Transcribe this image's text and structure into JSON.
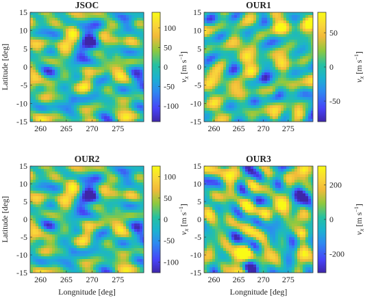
{
  "figure": {
    "xlabel": "Longnitude [deg]",
    "ylabel": "Latitude [deg]",
    "colorbar_label": "v_x [m s^-1]",
    "colormap": [
      "#3e26a8",
      "#4743f8",
      "#2d8bf0",
      "#1bb2cf",
      "#26c1a1",
      "#8fc93e",
      "#f2ba3a",
      "#f9d63a",
      "#f9fb15"
    ]
  },
  "chart_data": [
    {
      "type": "heatmap",
      "title": "JSOC",
      "xlabel": "",
      "ylabel": "Latitude [deg]",
      "x_ticks": [
        "260",
        "265",
        "270",
        "275"
      ],
      "y_ticks": [
        "15",
        "10",
        "5",
        "0",
        "-5",
        "-10",
        "-15"
      ],
      "xlim": [
        258,
        280
      ],
      "ylim": [
        -15,
        15
      ],
      "colorbar": {
        "ticks": [
          "100",
          "50",
          "0",
          "-50",
          "-100"
        ],
        "tick_values": [
          100,
          50,
          0,
          -50,
          -100
        ],
        "range": [
          -140,
          140
        ],
        "label": ""
      },
      "seed": 11
    },
    {
      "type": "heatmap",
      "title": "OUR1",
      "xlabel": "",
      "ylabel": "v_x [m s^-1]",
      "x_ticks": [
        "260",
        "265",
        "270",
        "275"
      ],
      "y_ticks": [
        "15",
        "10",
        "5",
        "0",
        "-5",
        "-10",
        "-15"
      ],
      "xlim": [
        258,
        280
      ],
      "ylim": [
        -15,
        15
      ],
      "colorbar": {
        "ticks": [
          "50",
          "0",
          "-50"
        ],
        "tick_values": [
          50,
          0,
          -50
        ],
        "range": [
          -80,
          80
        ],
        "label": "v_x [m s^-1]"
      },
      "seed": 23
    },
    {
      "type": "heatmap",
      "title": "OUR2",
      "xlabel": "Longnitude [deg]",
      "ylabel": "Latitude [deg]",
      "x_ticks": [
        "260",
        "265",
        "270",
        "275"
      ],
      "y_ticks": [
        "15",
        "10",
        "5",
        "0",
        "-5",
        "-10",
        "-15"
      ],
      "xlim": [
        258,
        280
      ],
      "ylim": [
        -15,
        15
      ],
      "colorbar": {
        "ticks": [
          "100",
          "50",
          "0",
          "-50",
          "-100"
        ],
        "tick_values": [
          100,
          50,
          0,
          -50,
          -100
        ],
        "range": [
          -125,
          125
        ],
        "label": ""
      },
      "seed": 11
    },
    {
      "type": "heatmap",
      "title": "OUR3",
      "xlabel": "Longnitude [deg]",
      "ylabel": "v_x [m s^-1]",
      "x_ticks": [
        "260",
        "265",
        "270",
        "275"
      ],
      "y_ticks": [
        "15",
        "10",
        "5",
        "0",
        "-5",
        "-10",
        "-15"
      ],
      "xlim": [
        258,
        280
      ],
      "ylim": [
        -15,
        15
      ],
      "colorbar": {
        "ticks": [
          "200",
          "0",
          "-200"
        ],
        "tick_values": [
          200,
          0,
          -200
        ],
        "range": [
          -310,
          310
        ],
        "label": "v_x [m s^-1]"
      },
      "seed": 37
    }
  ]
}
